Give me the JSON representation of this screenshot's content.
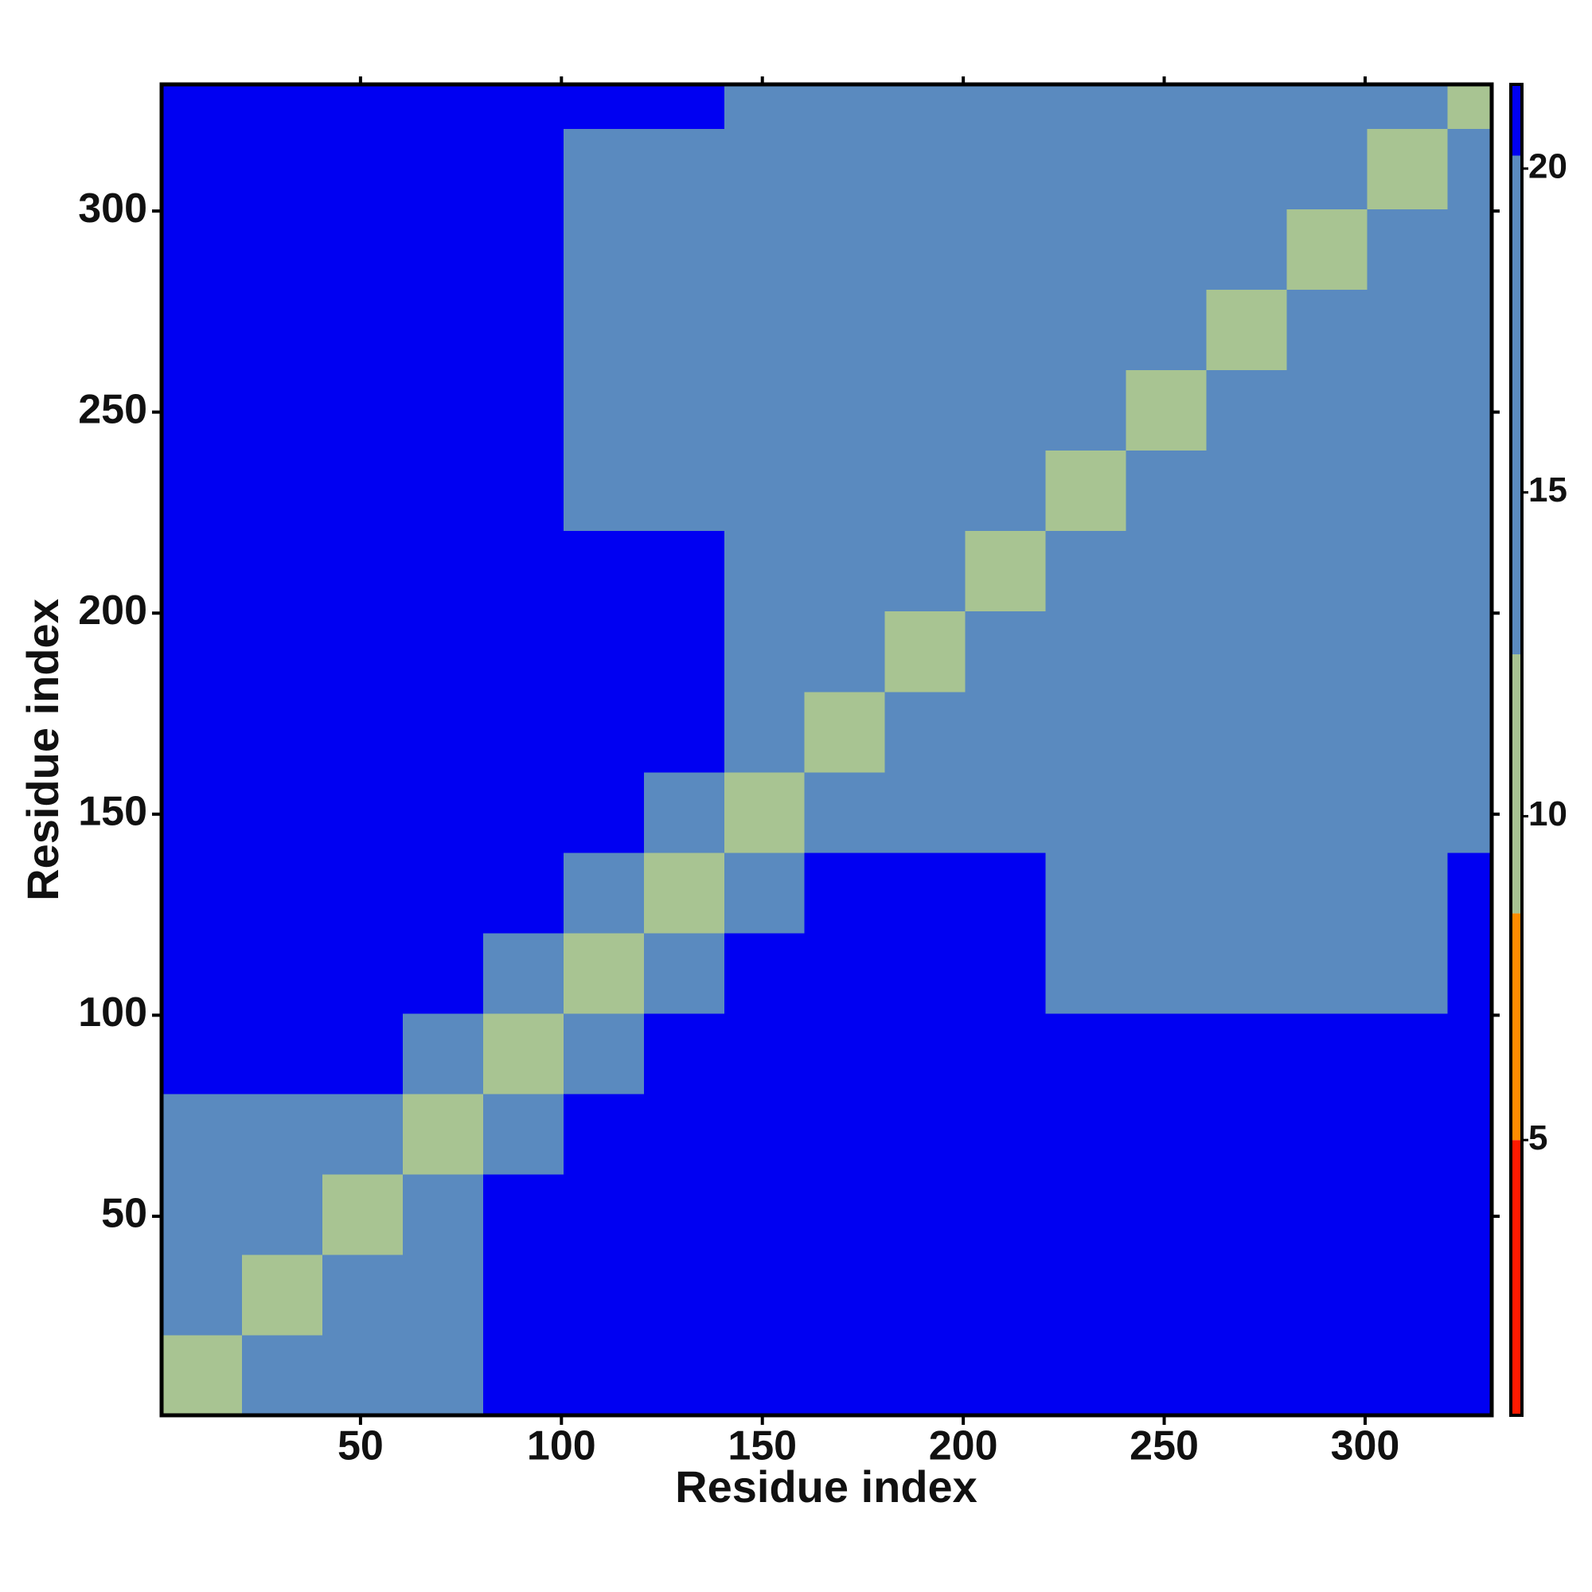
{
  "chart_data": {
    "type": "heatmap",
    "xlabel": "Residue index",
    "ylabel": "Residue index",
    "x_bins": [
      0.5,
      20.5,
      40.5,
      60.5,
      80.5,
      100.5,
      120.5,
      140.5,
      160.5,
      180.5,
      200.5,
      220.5,
      240.5,
      260.5,
      280.5,
      300.5,
      320.5,
      331.5
    ],
    "y_bins": [
      0.5,
      20.5,
      40.5,
      60.5,
      80.5,
      100.5,
      120.5,
      140.5,
      160.5,
      180.5,
      200.5,
      220.5,
      240.5,
      260.5,
      280.5,
      300.5,
      320.5,
      331.5
    ],
    "values": [
      [
        9,
        14,
        15,
        17,
        21,
        21,
        21,
        21,
        21,
        21,
        21,
        21,
        21,
        21,
        21,
        21,
        21
      ],
      [
        14,
        9,
        13,
        16,
        21,
        21,
        21,
        21,
        21,
        21,
        21,
        21,
        21,
        21,
        21,
        21,
        21
      ],
      [
        15,
        13,
        9,
        14,
        21,
        21,
        21,
        21,
        21,
        21,
        21,
        21,
        21,
        21,
        21,
        21,
        21
      ],
      [
        17,
        16,
        14,
        11,
        19,
        21,
        21,
        21,
        21,
        21,
        21,
        21,
        21,
        21,
        21,
        21,
        21
      ],
      [
        21,
        21,
        21,
        19,
        12,
        19,
        21,
        21,
        21,
        21,
        21,
        21,
        21,
        21,
        21,
        21,
        21
      ],
      [
        21,
        21,
        21,
        21,
        19,
        12,
        18,
        21,
        21,
        21,
        21,
        20,
        18,
        18,
        18,
        18,
        21
      ],
      [
        21,
        21,
        21,
        21,
        21,
        18,
        12,
        19,
        21,
        21,
        21,
        19,
        17,
        17,
        17,
        17,
        21
      ],
      [
        21,
        21,
        21,
        21,
        21,
        21,
        19,
        10,
        15,
        16,
        17,
        19,
        19,
        19,
        19,
        19,
        20
      ],
      [
        21,
        21,
        21,
        21,
        21,
        21,
        21,
        15,
        10,
        14,
        15,
        19,
        19,
        19,
        19,
        19,
        20
      ],
      [
        21,
        21,
        21,
        21,
        21,
        21,
        21,
        16,
        14,
        10,
        14,
        19,
        19,
        19,
        19,
        19,
        20
      ],
      [
        21,
        21,
        21,
        21,
        21,
        21,
        21,
        17,
        15,
        14,
        10,
        19,
        19,
        19,
        19,
        19,
        20
      ],
      [
        21,
        21,
        21,
        21,
        21,
        20,
        19,
        19,
        19,
        19,
        19,
        10,
        14,
        15,
        16,
        16,
        17
      ],
      [
        21,
        21,
        21,
        21,
        21,
        18,
        17,
        19,
        19,
        19,
        19,
        14,
        10,
        14,
        15,
        16,
        17
      ],
      [
        21,
        21,
        21,
        21,
        21,
        18,
        17,
        19,
        19,
        19,
        19,
        15,
        14,
        10,
        14,
        15,
        17
      ],
      [
        21,
        21,
        21,
        21,
        21,
        18,
        17,
        19,
        19,
        19,
        19,
        16,
        15,
        14,
        10,
        14,
        16
      ],
      [
        21,
        21,
        21,
        21,
        21,
        18,
        17,
        19,
        19,
        19,
        19,
        16,
        16,
        15,
        14,
        10,
        14
      ],
      [
        21,
        21,
        21,
        21,
        21,
        21,
        21,
        20,
        20,
        20,
        20,
        17,
        17,
        17,
        16,
        14,
        12
      ]
    ],
    "xlim": [
      0.5,
      331.5
    ],
    "ylim": [
      0.5,
      331.5
    ],
    "xticks": [
      50,
      100,
      150,
      200,
      250,
      300
    ],
    "yticks": [
      50,
      100,
      150,
      200,
      250,
      300
    ],
    "zlim": [
      0.75,
      21.3
    ],
    "zticks": [
      5,
      10,
      15,
      20
    ],
    "color_bands": [
      {
        "upto": 5,
        "color": "#ff1a00"
      },
      {
        "upto": 8.5,
        "color": "#ff8c00"
      },
      {
        "upto": 12.5,
        "color": "#a8c492"
      },
      {
        "upto": 20.2,
        "color": "#5a8abf"
      },
      {
        "upto": 21.3,
        "color": "#0000f2"
      }
    ]
  }
}
